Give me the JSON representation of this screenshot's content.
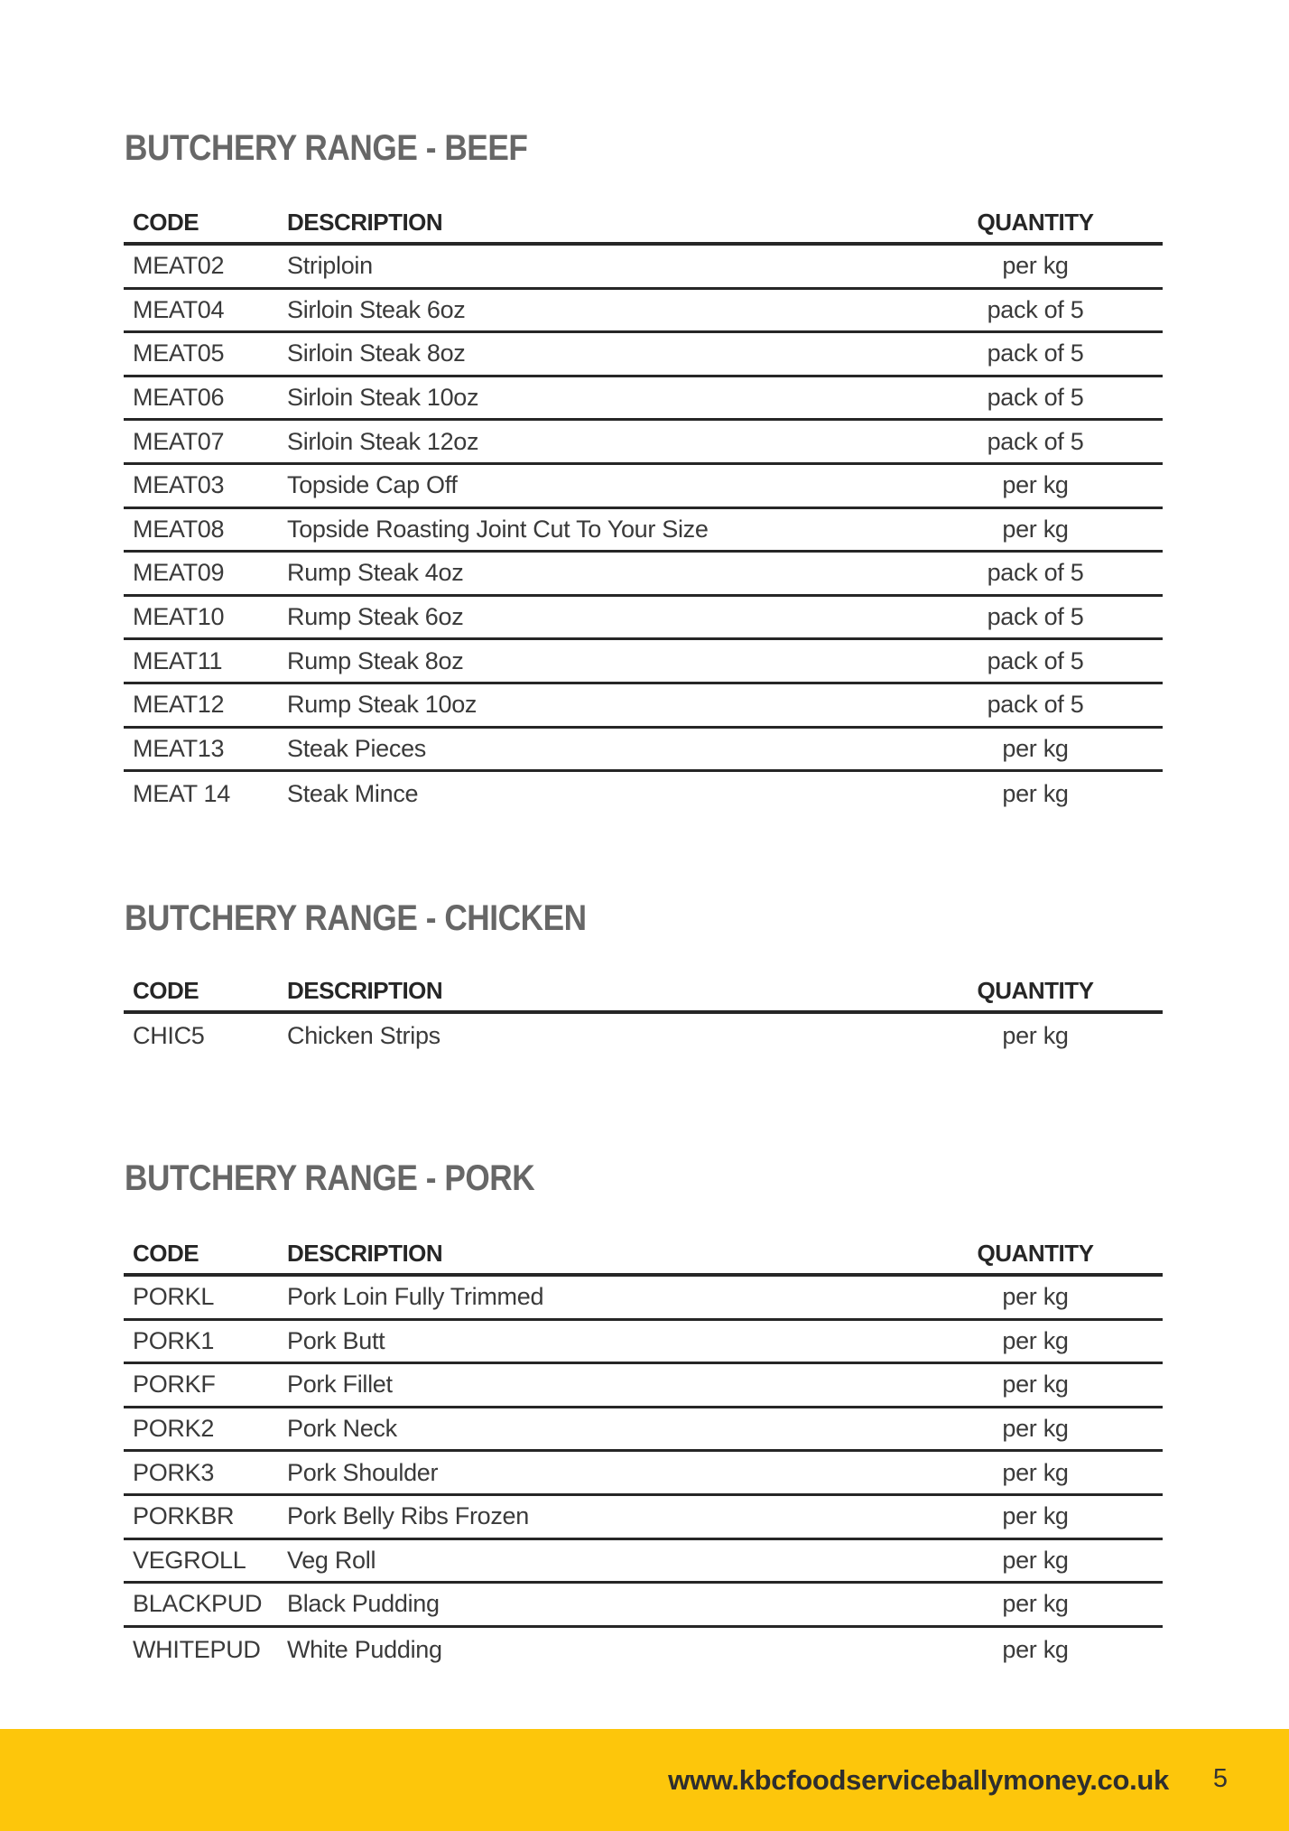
{
  "columns": {
    "code": "CODE",
    "description": "DESCRIPTION",
    "quantity": "QUANTITY"
  },
  "sections": [
    {
      "title": "BUTCHERY RANGE - BEEF",
      "rows": [
        {
          "code": "MEAT02",
          "description": "Striploin",
          "quantity": "per kg"
        },
        {
          "code": "MEAT04",
          "description": "Sirloin Steak 6oz",
          "quantity": "pack of 5"
        },
        {
          "code": "MEAT05",
          "description": "Sirloin Steak 8oz",
          "quantity": "pack of 5"
        },
        {
          "code": "MEAT06",
          "description": "Sirloin Steak 10oz",
          "quantity": "pack of 5"
        },
        {
          "code": "MEAT07",
          "description": "Sirloin Steak 12oz",
          "quantity": "pack of 5"
        },
        {
          "code": "MEAT03",
          "description": "Topside Cap Off",
          "quantity": "per kg"
        },
        {
          "code": "MEAT08",
          "description": "Topside Roasting Joint Cut To Your Size",
          "quantity": "per kg"
        },
        {
          "code": "MEAT09",
          "description": "Rump Steak 4oz",
          "quantity": "pack of 5"
        },
        {
          "code": "MEAT10",
          "description": "Rump Steak 6oz",
          "quantity": "pack of 5"
        },
        {
          "code": "MEAT11",
          "description": "Rump Steak 8oz",
          "quantity": "pack of 5"
        },
        {
          "code": "MEAT12",
          "description": "Rump Steak 10oz",
          "quantity": "pack of 5"
        },
        {
          "code": "MEAT13",
          "description": "Steak Pieces",
          "quantity": "per kg"
        },
        {
          "code": "MEAT 14",
          "description": "Steak Mince",
          "quantity": "per kg"
        }
      ]
    },
    {
      "title": "BUTCHERY RANGE - CHICKEN",
      "rows": [
        {
          "code": "CHIC5",
          "description": "Chicken Strips",
          "quantity": "per kg"
        }
      ]
    },
    {
      "title": "BUTCHERY RANGE - PORK",
      "rows": [
        {
          "code": "PORKL",
          "description": "Pork Loin Fully Trimmed",
          "quantity": "per kg"
        },
        {
          "code": "PORK1",
          "description": "Pork Butt",
          "quantity": "per kg"
        },
        {
          "code": "PORKF",
          "description": "Pork Fillet",
          "quantity": "per kg"
        },
        {
          "code": "PORK2",
          "description": "Pork Neck",
          "quantity": "per kg"
        },
        {
          "code": "PORK3",
          "description": "Pork Shoulder",
          "quantity": "per kg"
        },
        {
          "code": "PORKBR",
          "description": "Pork Belly Ribs Frozen",
          "quantity": "per kg"
        },
        {
          "code": "VEGROLL",
          "description": "Veg Roll",
          "quantity": "per kg"
        },
        {
          "code": "BLACKPUD",
          "description": "Black Pudding",
          "quantity": "per kg"
        },
        {
          "code": "WHITEPUD",
          "description": "White Pudding",
          "quantity": "per kg"
        }
      ]
    }
  ],
  "footer": {
    "url": "www.kbcfoodserviceballymoney.co.uk",
    "page_number": "5",
    "accent_color": "#fdc60b"
  }
}
